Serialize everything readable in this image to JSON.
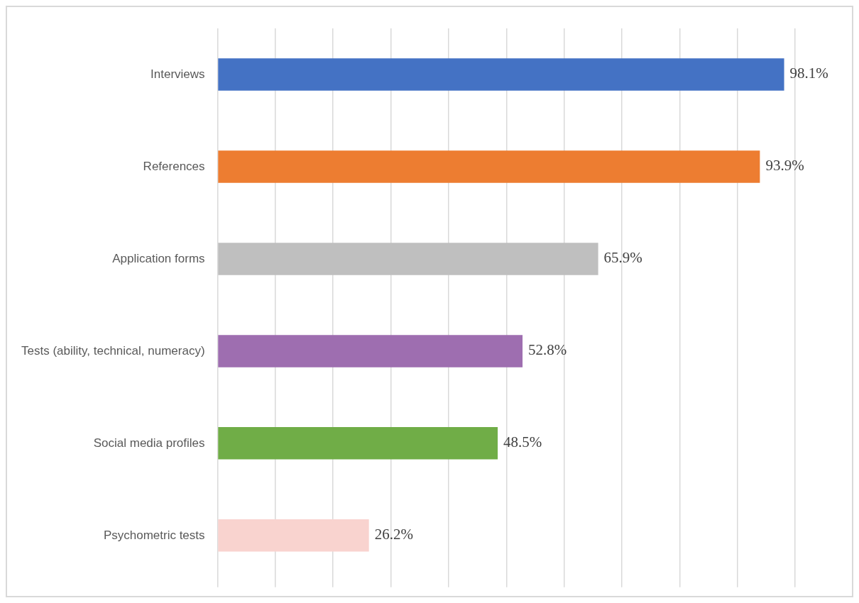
{
  "chart_data": {
    "type": "bar",
    "orientation": "horizontal",
    "categories": [
      "Interviews",
      "References",
      "Application forms",
      "Tests (ability, technical, numeracy)",
      "Social media profiles",
      "Psychometric tests"
    ],
    "values": [
      98.1,
      93.9,
      65.9,
      52.8,
      48.5,
      26.2
    ],
    "colors": [
      "#4472c4",
      "#ed7d31",
      "#bfbfbf",
      "#9e6eb0",
      "#70ad47",
      "#f9d3cf"
    ],
    "value_labels": [
      "98.1%",
      "93.9%",
      "65.9%",
      "52.8%",
      "48.5%",
      "26.2%"
    ],
    "xlim": [
      0,
      100
    ],
    "xticks": [
      {
        "value": 0,
        "label": null
      },
      {
        "value": 10,
        "label": null
      },
      {
        "value": 20,
        "label": null
      },
      {
        "value": 30,
        "label": null
      },
      {
        "value": 40,
        "label": null
      },
      {
        "value": 50,
        "label": null
      },
      {
        "value": 60,
        "label": null
      },
      {
        "value": 70,
        "label": null
      },
      {
        "value": 80,
        "label": null
      },
      {
        "value": 90,
        "label": null
      },
      {
        "value": 100,
        "label": null
      }
    ],
    "tick_labels": "y",
    "grid": "x",
    "legend": false
  }
}
